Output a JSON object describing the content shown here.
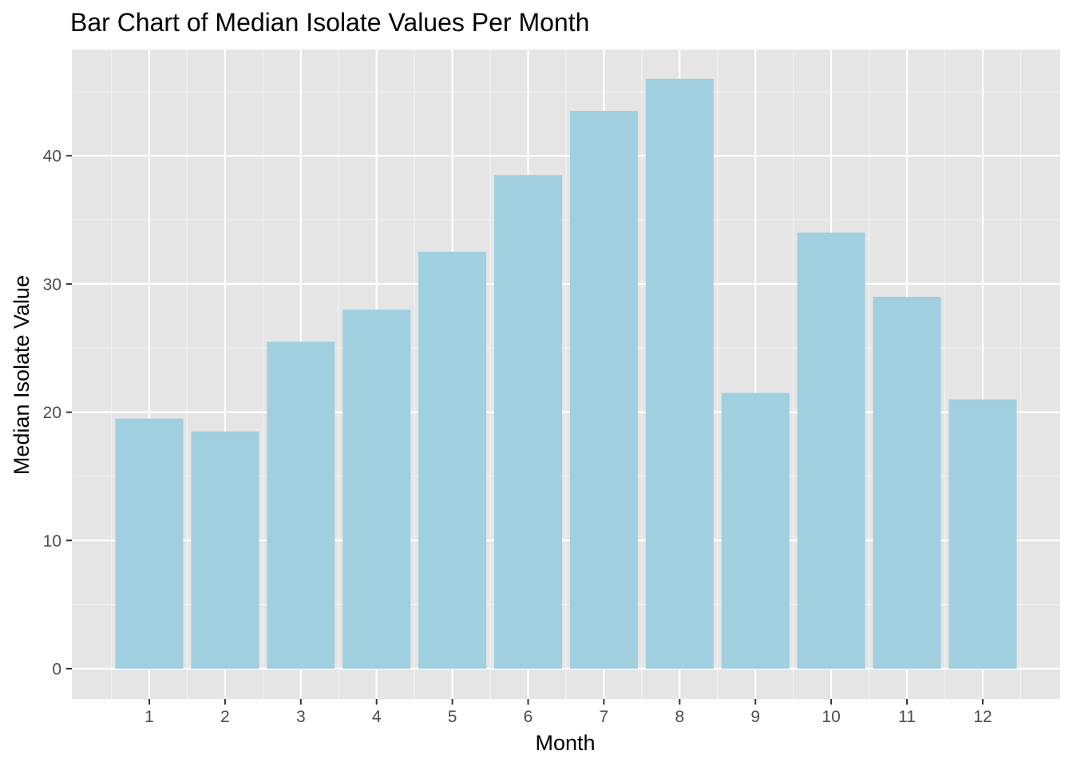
{
  "chart_data": {
    "type": "bar",
    "title": "Bar Chart of Median Isolate Values Per Month",
    "xlabel": "Month",
    "ylabel": "Median Isolate Value",
    "categories": [
      "1",
      "2",
      "3",
      "4",
      "5",
      "6",
      "7",
      "8",
      "9",
      "10",
      "11",
      "12"
    ],
    "values": [
      19.5,
      18.5,
      25.5,
      28,
      32.5,
      38.5,
      43.5,
      46,
      21.5,
      34,
      29,
      21
    ],
    "y_ticks": [
      "0",
      "10",
      "20",
      "30",
      "40"
    ],
    "ylim": [
      0,
      46
    ],
    "grid": true,
    "legend": "none",
    "colors": {
      "bar": "#a0cfe0",
      "panel": "#e5e5e5",
      "grid_major": "#ffffff",
      "grid_minor": "#f2f2f2",
      "tick_label": "#4d4d4d",
      "tick_mark": "#333333"
    }
  }
}
